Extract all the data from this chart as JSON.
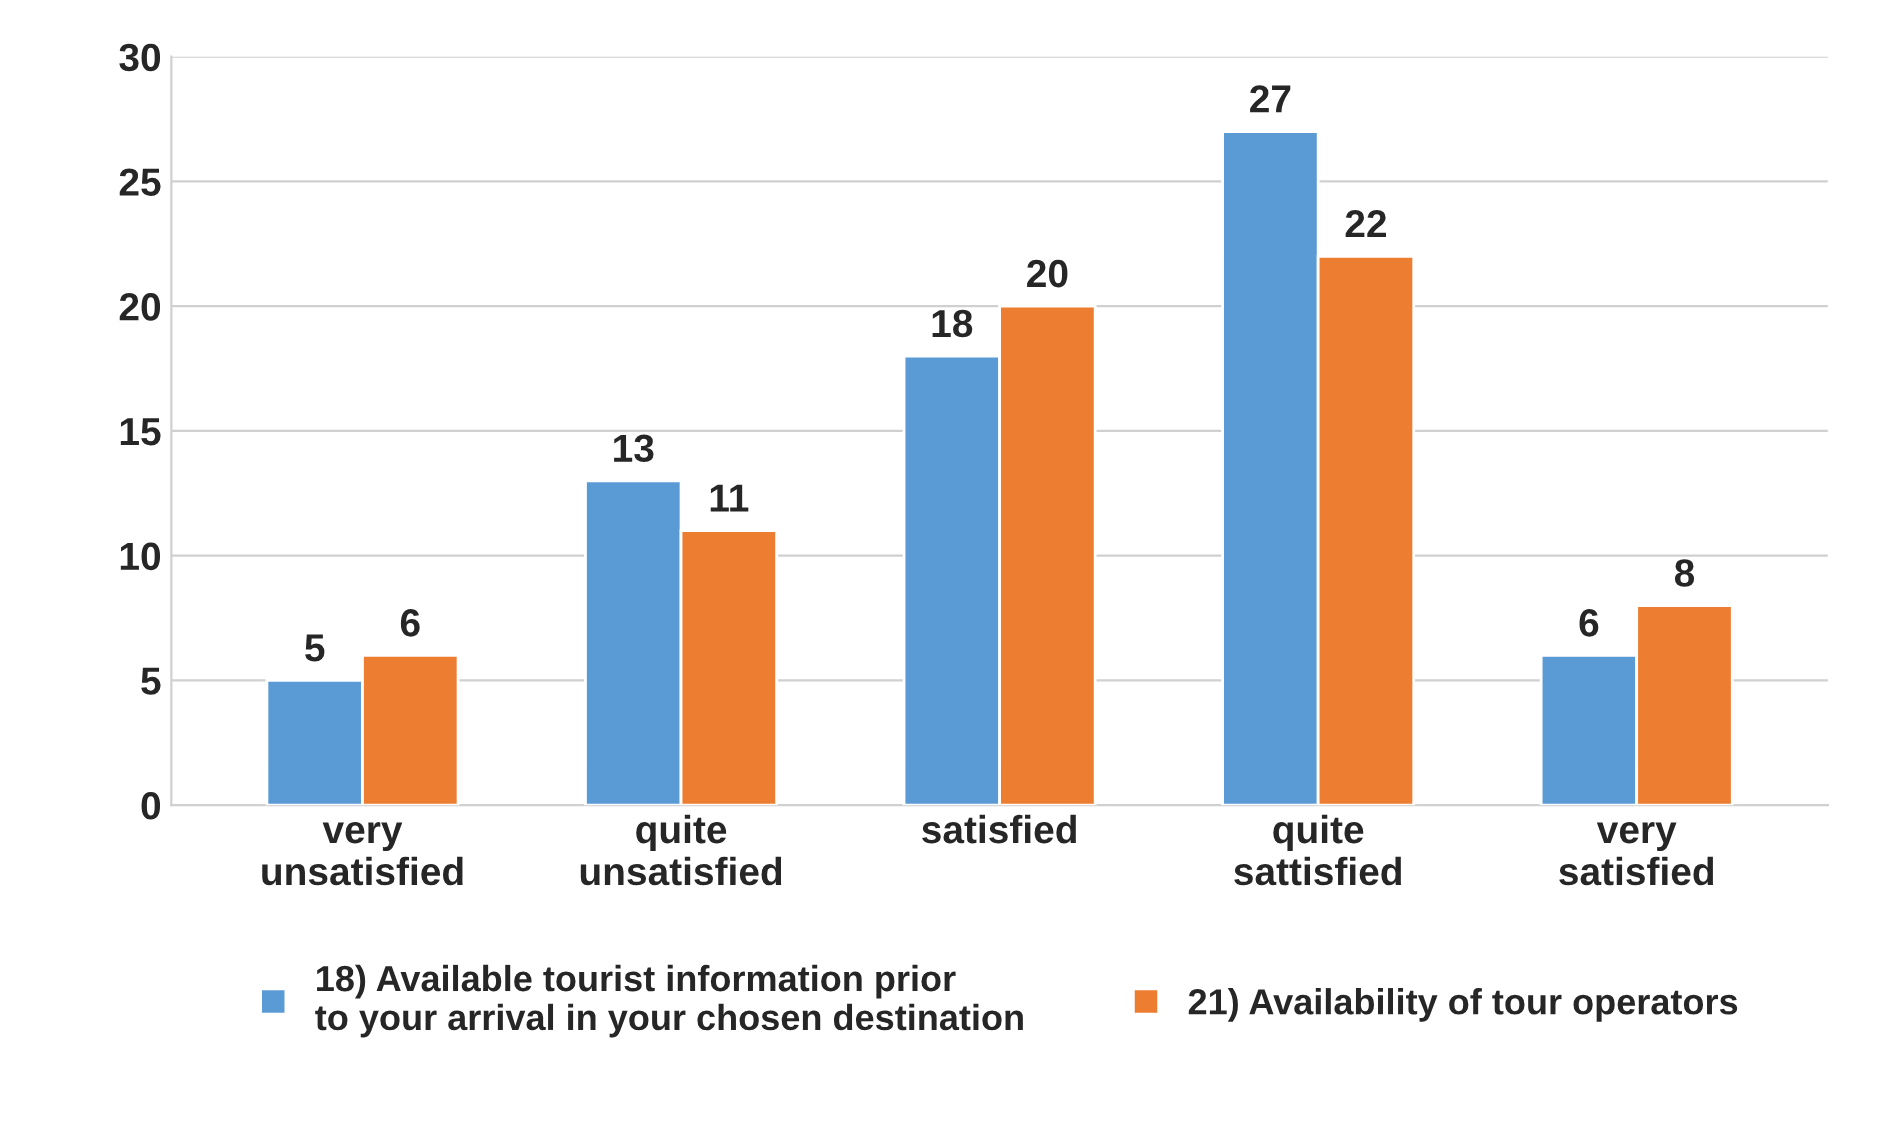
{
  "chart_data": {
    "type": "bar",
    "categories": [
      "very\nunsatisfied",
      "quite\nunsatisfied",
      "satisfied",
      "quite\nsattisfied",
      "very\nsatisfied"
    ],
    "series": [
      {
        "name": "18) Available tourist information prior\nto your arrival in your chosen destination",
        "color": "#5b9bd5",
        "values": [
          5,
          13,
          18,
          27,
          6
        ]
      },
      {
        "name": "21) Availability of tour operators",
        "color": "#ed7d31",
        "values": [
          6,
          11,
          20,
          22,
          8
        ]
      }
    ],
    "ylim": [
      0,
      30
    ],
    "yticks": [
      0,
      5,
      10,
      15,
      20,
      25,
      30
    ],
    "grid": "y",
    "legend": "bottom",
    "data_labels": true
  }
}
